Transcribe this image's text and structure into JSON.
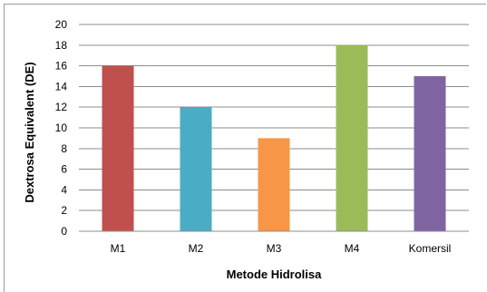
{
  "chart_data": {
    "type": "bar",
    "categories": [
      "M1",
      "M2",
      "M3",
      "M4",
      "Komersil"
    ],
    "values": [
      16,
      12,
      9,
      18,
      15
    ],
    "colors": [
      "#c0504d",
      "#4bacc6",
      "#f79646",
      "#9bbb59",
      "#8064a2"
    ],
    "xlabel": "Metode Hidrolisa",
    "ylabel": "Dextrosa Equivalent (DE)",
    "ylim": [
      0,
      20
    ],
    "yticks": [
      "0",
      "2",
      "4",
      "6",
      "8",
      "10",
      "12",
      "14",
      "16",
      "18",
      "20"
    ],
    "grid": true,
    "legend": "none"
  }
}
